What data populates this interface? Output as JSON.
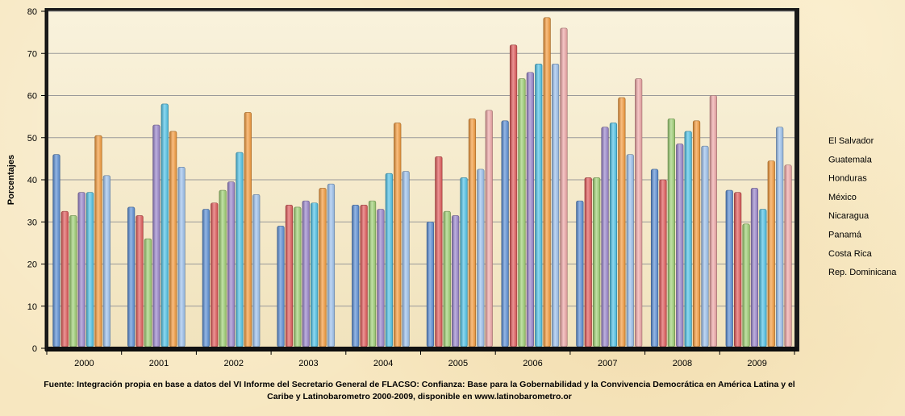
{
  "chart_data": {
    "type": "bar",
    "title": "",
    "xlabel": "",
    "ylabel": "Porcentajes",
    "ylim": [
      0,
      80
    ],
    "yticks": [
      0,
      10,
      20,
      30,
      40,
      50,
      60,
      70,
      80
    ],
    "grid": true,
    "legend_position": "right",
    "categories": [
      "2000",
      "2001",
      "2002",
      "2003",
      "2004",
      "2005",
      "2006",
      "2007",
      "2008",
      "2009"
    ],
    "series": [
      {
        "name": "El Salvador",
        "color": "#5b8fd6",
        "values": [
          46,
          33.5,
          33,
          29,
          34,
          30,
          54,
          35,
          42.5,
          37.5
        ]
      },
      {
        "name": "Guatemala",
        "color": "#e25a5a",
        "values": [
          32.5,
          31.5,
          34.5,
          34,
          34,
          45.5,
          72,
          40.5,
          40,
          37
        ]
      },
      {
        "name": "Honduras",
        "color": "#9fd174",
        "values": [
          31.5,
          26,
          37.5,
          33.5,
          35,
          32.5,
          64,
          40.5,
          54.5,
          29.5
        ]
      },
      {
        "name": "México",
        "color": "#9a85cc",
        "values": [
          37,
          53,
          39.5,
          35,
          33,
          31.5,
          65.5,
          52.5,
          48.5,
          38
        ]
      },
      {
        "name": "Nicaragua",
        "color": "#4fc3e8",
        "values": [
          37,
          58,
          46.5,
          34.5,
          41.5,
          40.5,
          67.5,
          53.5,
          51.5,
          33
        ]
      },
      {
        "name": "Panamá",
        "color": "#f59b3c",
        "values": [
          50.5,
          51.5,
          56,
          38,
          53.5,
          54.5,
          78.5,
          59.5,
          54,
          44.5
        ]
      },
      {
        "name": "Costa Rica",
        "color": "#9cc1ee",
        "values": [
          41,
          43,
          36.5,
          39,
          42,
          42.5,
          67.5,
          46,
          48,
          52.5
        ]
      },
      {
        "name": "Rep. Dominicana",
        "color": "#f0a7a7",
        "values": [
          null,
          null,
          null,
          null,
          null,
          56.5,
          76,
          64,
          60,
          43.5
        ]
      }
    ]
  },
  "source_text": "Fuente: Integración propia en base a datos del VI Informe del Secretario General de FLACSO: Confianza: Base para la Gobernabilidad y la Convivencia Democrática en América Latina y el Caribe y Latinobarometro 2000-2009, disponible en www.latinobarometro.or"
}
